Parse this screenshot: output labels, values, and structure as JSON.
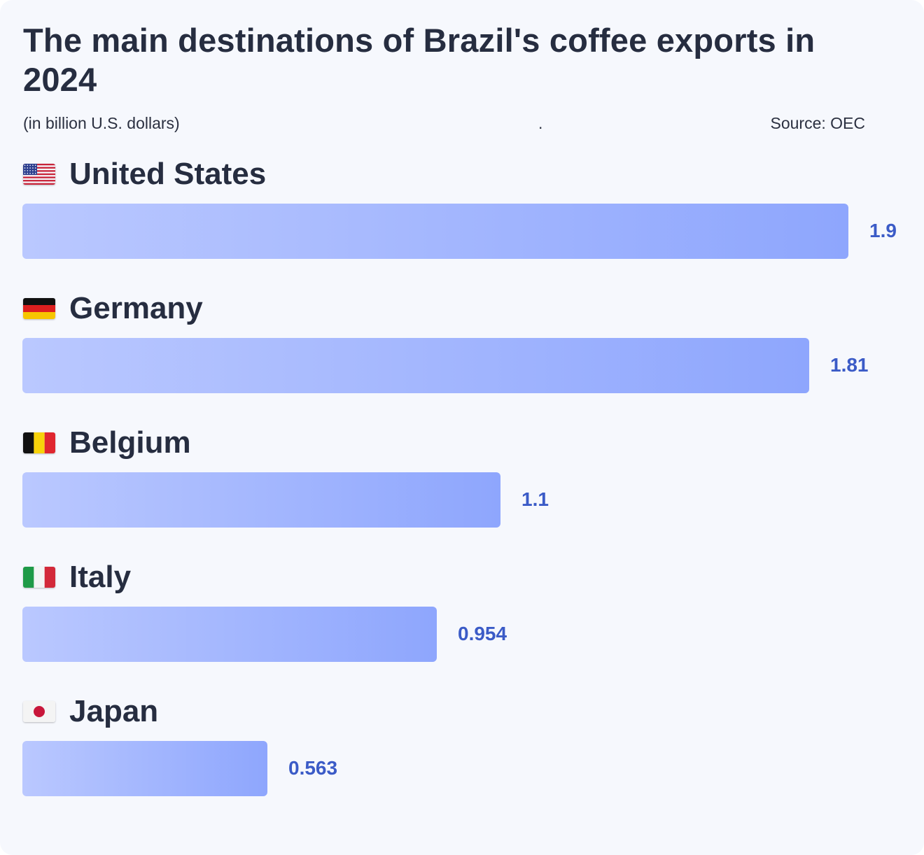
{
  "chart_data": {
    "type": "bar",
    "orientation": "horizontal",
    "title": "The main destinations of Brazil's coffee exports in 2024",
    "subtitle": "(in billion U.S. dollars)",
    "separator": ".",
    "source": "Source: OEC",
    "categories": [
      "United States",
      "Germany",
      "Belgium",
      "Italy",
      "Japan"
    ],
    "values": [
      1.9,
      1.81,
      1.1,
      0.954,
      0.563
    ],
    "value_labels": [
      "1.9",
      "1.81",
      "1.1",
      "0.954",
      "0.563"
    ],
    "flags": [
      "us-flag-icon",
      "germany-flag-icon",
      "belgium-flag-icon",
      "italy-flag-icon",
      "japan-flag-icon"
    ],
    "bar_gradient": [
      "#bac8ff",
      "#8ea6fd"
    ],
    "value_color": "#3b5bc7",
    "background": "#f6f8fd",
    "xlim": [
      0,
      1.9
    ],
    "grid": false,
    "legend": "none"
  }
}
